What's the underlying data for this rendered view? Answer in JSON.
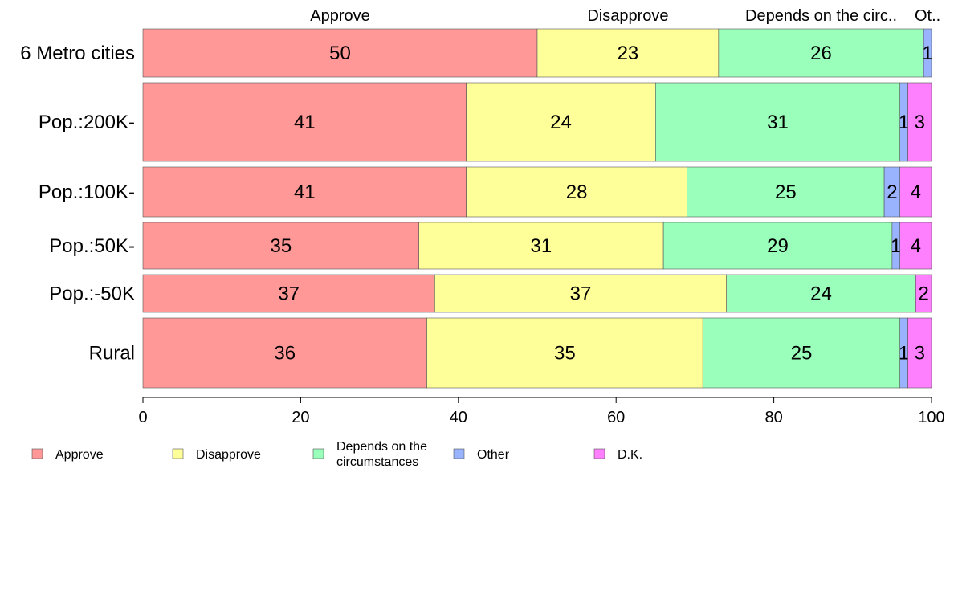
{
  "chart_data": {
    "type": "bar",
    "orientation": "horizontal",
    "stacked": true,
    "categories": [
      "6 Metro cities",
      "Pop.:200K-",
      "Pop.:100K-",
      "Pop.:50K-",
      "Pop.:-50K",
      "Rural"
    ],
    "series": [
      {
        "name": "Approve",
        "short": "Approve",
        "color": "#FF9896",
        "values": [
          50,
          41,
          41,
          35,
          37,
          36
        ]
      },
      {
        "name": "Disapprove",
        "short": "Disapprove",
        "color": "#FFFF99",
        "values": [
          23,
          24,
          28,
          31,
          37,
          35
        ]
      },
      {
        "name": "Depends on the circumstances",
        "short": "Depends on the circ..",
        "legend_lines": [
          "Depends on the",
          "circumstances"
        ],
        "color": "#99FFBB",
        "values": [
          26,
          31,
          25,
          29,
          24,
          25
        ]
      },
      {
        "name": "Other",
        "short": "Ot..",
        "color": "#99B3FF",
        "values": [
          1,
          1,
          2,
          1,
          0,
          1
        ]
      },
      {
        "name": "D.K.",
        "short": "D.K.",
        "color": "#FF80FF",
        "values": [
          0,
          3,
          4,
          4,
          2,
          3
        ]
      }
    ],
    "xlim": [
      0,
      100
    ],
    "xticks": [
      0,
      20,
      40,
      60,
      80,
      100
    ],
    "legend_position": "bottom",
    "top_labels_over": "first row"
  }
}
